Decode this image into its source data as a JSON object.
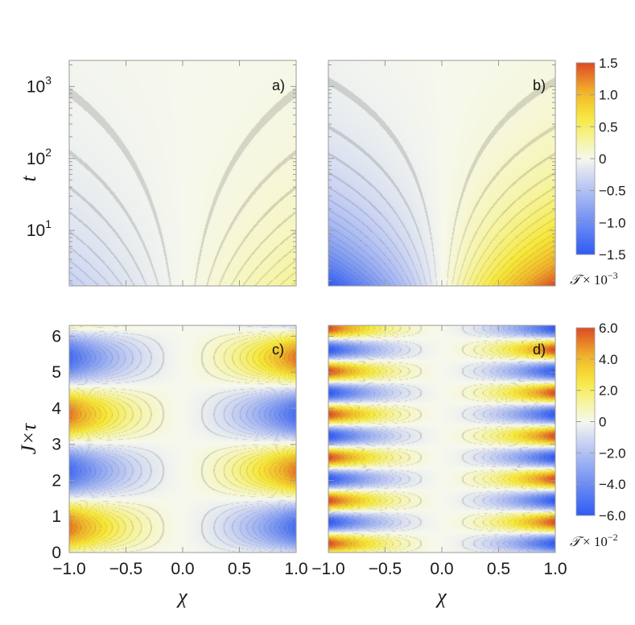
{
  "chart_data": [
    {
      "id": "a",
      "type": "heatmap",
      "panel_label": "a)",
      "ylabel": "t",
      "yscale": "log",
      "xlim": [
        -1.0,
        1.0
      ],
      "ylim": [
        1.7,
        2300
      ],
      "y_ticks": [
        {
          "value": 10,
          "base": "10",
          "exp": "1"
        },
        {
          "value": 100,
          "base": "10",
          "exp": "2"
        },
        {
          "value": 1000,
          "base": "10",
          "exp": "3"
        }
      ],
      "amplitude": 0.35,
      "colorbar": "top"
    },
    {
      "id": "b",
      "type": "heatmap",
      "panel_label": "b)",
      "yscale": "log",
      "xlim": [
        -1.0,
        1.0
      ],
      "ylim": [
        1.7,
        2300
      ],
      "amplitude": 1.5,
      "colorbar": "top"
    },
    {
      "id": "c",
      "type": "heatmap",
      "panel_label": "c)",
      "ylabel": "J×τ",
      "xlabel": "χ",
      "xlim": [
        -1.0,
        1.0
      ],
      "ylim": [
        0,
        6.3
      ],
      "x_ticks": [
        "-1.0",
        "-0.5",
        "0.0",
        "0.5",
        "1.0"
      ],
      "y_ticks": [
        "0",
        "1",
        "2",
        "3",
        "4",
        "5",
        "6"
      ],
      "amplitude": 5.2,
      "oscillation_periods": 2,
      "colorbar": "bottom"
    },
    {
      "id": "d",
      "type": "heatmap",
      "panel_label": "d)",
      "xlabel": "χ",
      "xlim": [
        -1.0,
        1.0
      ],
      "ylim": [
        0,
        6.3
      ],
      "x_ticks": [
        "-1.0",
        "-0.5",
        "0.0",
        "0.5",
        "1.0"
      ],
      "amplitude": 6.0,
      "oscillation_periods": 5,
      "colorbar": "bottom"
    }
  ],
  "colorbars": [
    {
      "position": "top",
      "range": [
        -1.5,
        1.5
      ],
      "tick_values": [
        1.5,
        1.0,
        0.5,
        0,
        -0.5,
        -1.0,
        -1.5
      ],
      "tick_labels": [
        "1.5",
        "1.0",
        "0.5",
        "0",
        "−0.5",
        "−1.0",
        "−1.5"
      ],
      "label_symbol": "𝒯",
      "label_scale": "× 10",
      "label_exp": "−3"
    },
    {
      "position": "bottom",
      "range": [
        -6.0,
        6.0
      ],
      "tick_values": [
        6.0,
        4.0,
        2.0,
        0,
        -2.0,
        -4.0,
        -6.0
      ],
      "tick_labels": [
        "6.0",
        "4.0",
        "2.0",
        "0",
        "−2.0",
        "−4.0",
        "−6.0"
      ],
      "label_symbol": "𝒯",
      "label_scale": "× 10",
      "label_exp": "−2"
    }
  ],
  "colormap": [
    "#2e5bf5",
    "#7b97f2",
    "#c5cff3",
    "#f6f8ee",
    "#f6f4a0",
    "#f7e83a",
    "#f0b22c",
    "#dd4a25"
  ]
}
